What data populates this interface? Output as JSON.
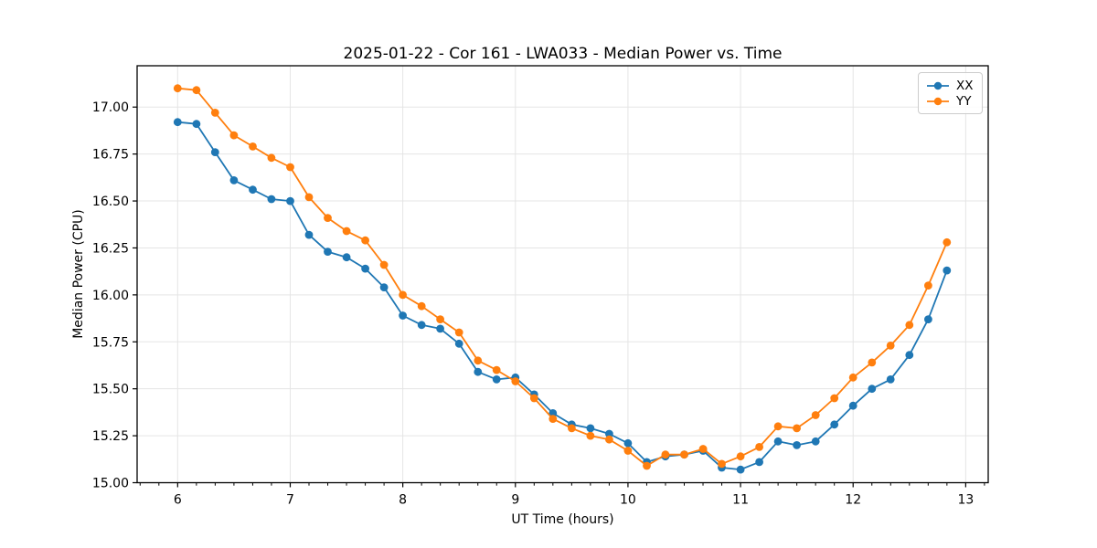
{
  "chart_data": {
    "type": "line",
    "title": "2025-01-22 - Cor 161 - LWA033 - Median Power vs. Time",
    "xlabel": "UT Time (hours)",
    "ylabel": "Median Power (CPU)",
    "xlim": [
      5.64,
      13.2
    ],
    "ylim": [
      15.0,
      17.22
    ],
    "x_ticks": [
      6,
      7,
      8,
      9,
      10,
      11,
      12,
      13
    ],
    "y_ticks": [
      15.0,
      15.25,
      15.5,
      15.75,
      16.0,
      16.25,
      16.5,
      16.75,
      17.0
    ],
    "x_minor_ticks_per_hour": 6,
    "grid": true,
    "legend_position": "upper right",
    "x": [
      6.0,
      6.167,
      6.333,
      6.5,
      6.667,
      6.833,
      7.0,
      7.167,
      7.333,
      7.5,
      7.667,
      7.833,
      8.0,
      8.167,
      8.333,
      8.5,
      8.667,
      8.833,
      9.0,
      9.167,
      9.333,
      9.5,
      9.667,
      9.833,
      10.0,
      10.167,
      10.333,
      10.5,
      10.667,
      10.833,
      11.0,
      11.167,
      11.333,
      11.5,
      11.667,
      11.833,
      12.0,
      12.167,
      12.333,
      12.5,
      12.667,
      12.833
    ],
    "series": [
      {
        "name": "XX",
        "color": "#1f77b4",
        "values": [
          16.92,
          16.91,
          16.76,
          16.61,
          16.56,
          16.51,
          16.5,
          16.32,
          16.23,
          16.2,
          16.14,
          16.04,
          15.89,
          15.84,
          15.82,
          15.74,
          15.59,
          15.55,
          15.56,
          15.47,
          15.37,
          15.31,
          15.29,
          15.26,
          15.21,
          15.11,
          15.14,
          15.15,
          15.17,
          15.08,
          15.07,
          15.11,
          15.22,
          15.2,
          15.22,
          15.31,
          15.41,
          15.5,
          15.55,
          15.68,
          15.87,
          16.13
        ]
      },
      {
        "name": "YY",
        "color": "#ff7f0e",
        "values": [
          17.1,
          17.09,
          16.97,
          16.85,
          16.79,
          16.73,
          16.68,
          16.52,
          16.41,
          16.34,
          16.29,
          16.16,
          16.0,
          15.94,
          15.87,
          15.8,
          15.65,
          15.6,
          15.54,
          15.45,
          15.34,
          15.29,
          15.25,
          15.23,
          15.17,
          15.09,
          15.15,
          15.15,
          15.18,
          15.1,
          15.14,
          15.19,
          15.3,
          15.29,
          15.36,
          15.45,
          15.56,
          15.64,
          15.73,
          15.84,
          16.05,
          16.28
        ]
      }
    ]
  }
}
